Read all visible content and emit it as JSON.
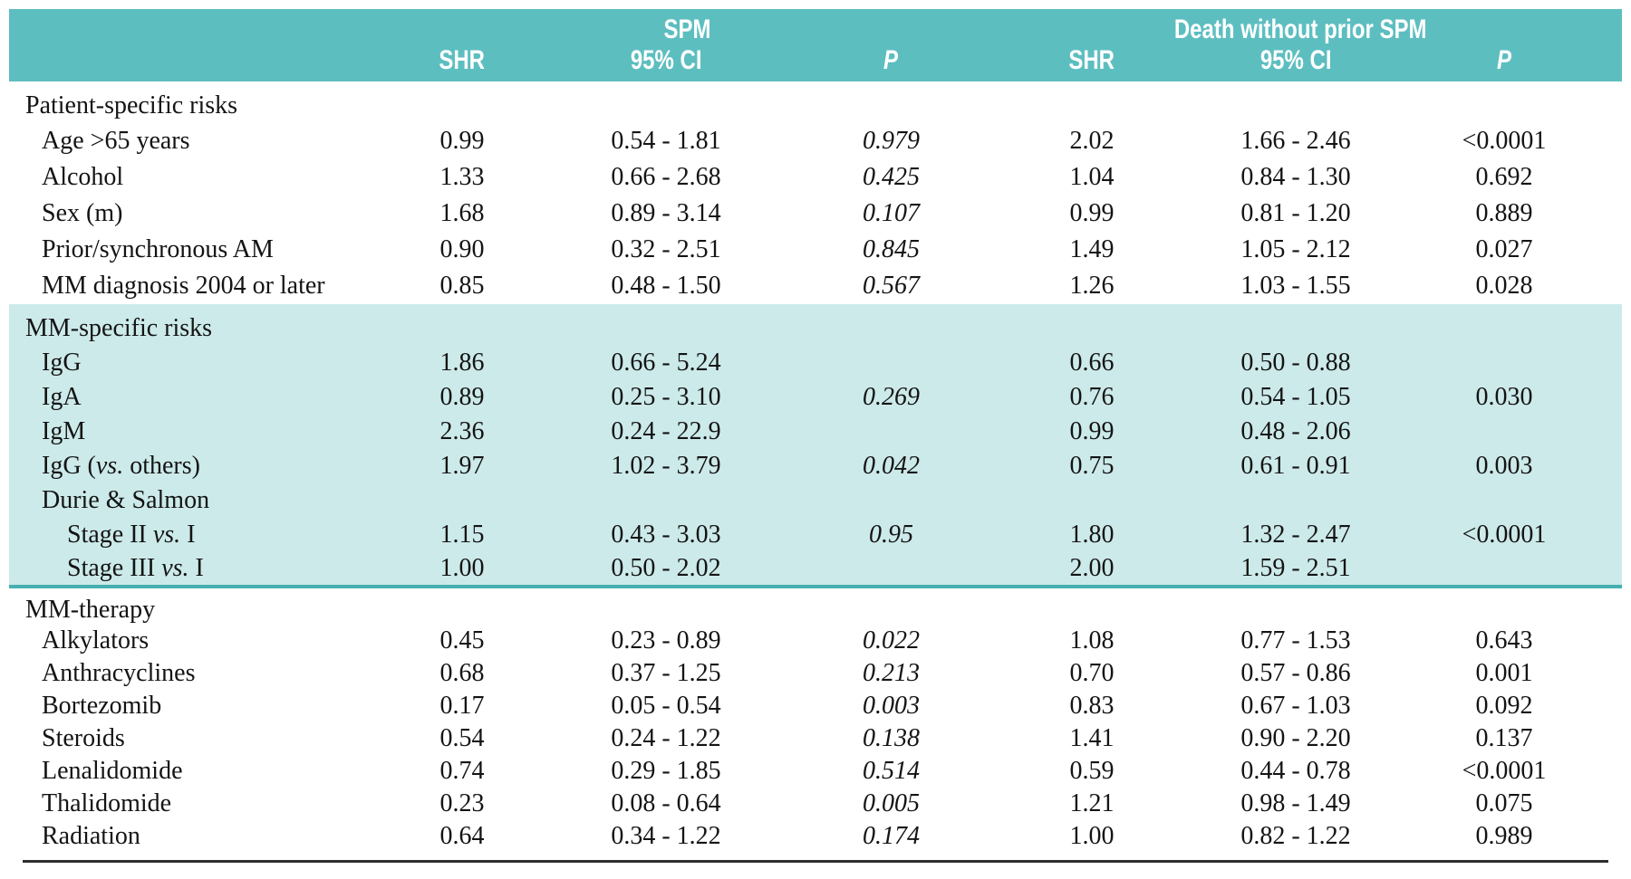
{
  "colors": {
    "header_teal": "#5dbec0",
    "section_teal": "#cdeaea",
    "divider_teal": "#46afb2",
    "rule_dark": "#2e2e2e"
  },
  "header": {
    "spm": {
      "title": "SPM",
      "shr": "SHR",
      "ci": "95% CI",
      "p": "P"
    },
    "death": {
      "title": "Death without prior SPM",
      "shr": "SHR",
      "ci": "95% CI",
      "p": "P"
    }
  },
  "sections": [
    {
      "name": "Patient-specific risks",
      "shaded": false,
      "rows": [
        {
          "label": [
            {
              "t": "Age >65 years"
            }
          ],
          "indent": 1,
          "shr1": "0.99",
          "ci1": "0.54 - 1.81",
          "p1": "0.979",
          "shr2": "2.02",
          "ci2": "1.66 - 2.46",
          "p2": "<0.0001"
        },
        {
          "label": [
            {
              "t": "Alcohol"
            }
          ],
          "indent": 1,
          "shr1": "1.33",
          "ci1": "0.66 - 2.68",
          "p1": "0.425",
          "shr2": "1.04",
          "ci2": "0.84 - 1.30",
          "p2": "0.692"
        },
        {
          "label": [
            {
              "t": "Sex (m)"
            }
          ],
          "indent": 1,
          "shr1": "1.68",
          "ci1": "0.89 - 3.14",
          "p1": "0.107",
          "shr2": "0.99",
          "ci2": "0.81 - 1.20",
          "p2": "0.889"
        },
        {
          "label": [
            {
              "t": "Prior/synchronous AM"
            }
          ],
          "indent": 1,
          "shr1": "0.90",
          "ci1": "0.32 - 2.51",
          "p1": "0.845",
          "shr2": "1.49",
          "ci2": "1.05 - 2.12",
          "p2": "0.027"
        },
        {
          "label": [
            {
              "t": "MM diagnosis 2004 or later"
            }
          ],
          "indent": 1,
          "shr1": "0.85",
          "ci1": "0.48 - 1.50",
          "p1": "0.567",
          "shr2": "1.26",
          "ci2": "1.03 - 1.55",
          "p2": "0.028"
        }
      ]
    },
    {
      "name": "MM-specific risks",
      "shaded": true,
      "rows": [
        {
          "label": [
            {
              "t": "IgG"
            }
          ],
          "indent": 1,
          "shr1": "1.86",
          "ci1": "0.66 - 5.24",
          "p1": "",
          "shr2": "0.66",
          "ci2": "0.50 - 0.88",
          "p2": ""
        },
        {
          "label": [
            {
              "t": "IgA"
            }
          ],
          "indent": 1,
          "shr1": "0.89",
          "ci1": "0.25 - 3.10",
          "p1": "0.269",
          "shr2": "0.76",
          "ci2": "0.54 - 1.05",
          "p2": "0.030"
        },
        {
          "label": [
            {
              "t": "IgM"
            }
          ],
          "indent": 1,
          "shr1": "2.36",
          "ci1": "0.24 - 22.9",
          "p1": "",
          "shr2": "0.99",
          "ci2": "0.48 - 2.06",
          "p2": ""
        },
        {
          "label": [
            {
              "t": "IgG ("
            },
            {
              "t": "vs.",
              "i": true
            },
            {
              "t": " others)"
            }
          ],
          "indent": 1,
          "shr1": "1.97",
          "ci1": "1.02 - 3.79",
          "p1": "0.042",
          "shr2": "0.75",
          "ci2": "0.61 - 0.91",
          "p2": "0.003"
        },
        {
          "label": [
            {
              "t": "Durie & Salmon"
            }
          ],
          "indent": 1,
          "shr1": "",
          "ci1": "",
          "p1": "",
          "shr2": "",
          "ci2": "",
          "p2": ""
        },
        {
          "label": [
            {
              "t": "Stage II "
            },
            {
              "t": "vs.",
              "i": true
            },
            {
              "t": " I"
            }
          ],
          "indent": 2,
          "shr1": "1.15",
          "ci1": "0.43 - 3.03",
          "p1": "0.95",
          "shr2": "1.80",
          "ci2": "1.32 - 2.47",
          "p2": "<0.0001"
        },
        {
          "label": [
            {
              "t": "Stage III "
            },
            {
              "t": "vs.",
              "i": true
            },
            {
              "t": " I"
            }
          ],
          "indent": 2,
          "shr1": "1.00",
          "ci1": "0.50 - 2.02",
          "p1": "",
          "shr2": "2.00",
          "ci2": "1.59 - 2.51",
          "p2": ""
        }
      ]
    },
    {
      "name": "MM-therapy",
      "shaded": false,
      "rows": [
        {
          "label": [
            {
              "t": "Alkylators"
            }
          ],
          "indent": 1,
          "shr1": "0.45",
          "ci1": "0.23 - 0.89",
          "p1": "0.022",
          "shr2": "1.08",
          "ci2": "0.77 - 1.53",
          "p2": "0.643"
        },
        {
          "label": [
            {
              "t": "Anthracyclines"
            }
          ],
          "indent": 1,
          "shr1": "0.68",
          "ci1": "0.37 - 1.25",
          "p1": "0.213",
          "shr2": "0.70",
          "ci2": "0.57 - 0.86",
          "p2": "0.001"
        },
        {
          "label": [
            {
              "t": "Bortezomib"
            }
          ],
          "indent": 1,
          "shr1": "0.17",
          "ci1": "0.05 - 0.54",
          "p1": "0.003",
          "shr2": "0.83",
          "ci2": "0.67 - 1.03",
          "p2": "0.092"
        },
        {
          "label": [
            {
              "t": "Steroids"
            }
          ],
          "indent": 1,
          "shr1": "0.54",
          "ci1": "0.24 - 1.22",
          "p1": "0.138",
          "shr2": "1.41",
          "ci2": "0.90 - 2.20",
          "p2": "0.137"
        },
        {
          "label": [
            {
              "t": "Lenalidomide"
            }
          ],
          "indent": 1,
          "shr1": "0.74",
          "ci1": "0.29 - 1.85",
          "p1": "0.514",
          "shr2": "0.59",
          "ci2": "0.44 - 0.78",
          "p2": "<0.0001"
        },
        {
          "label": [
            {
              "t": "Thalidomide"
            }
          ],
          "indent": 1,
          "shr1": "0.23",
          "ci1": "0.08 - 0.64",
          "p1": "0.005",
          "shr2": "1.21",
          "ci2": "0.98 - 1.49",
          "p2": "0.075"
        },
        {
          "label": [
            {
              "t": "Radiation"
            }
          ],
          "indent": 1,
          "shr1": "0.64",
          "ci1": "0.34 - 1.22",
          "p1": "0.174",
          "shr2": "1.00",
          "ci2": "0.82 - 1.22",
          "p2": "0.989"
        }
      ]
    }
  ]
}
